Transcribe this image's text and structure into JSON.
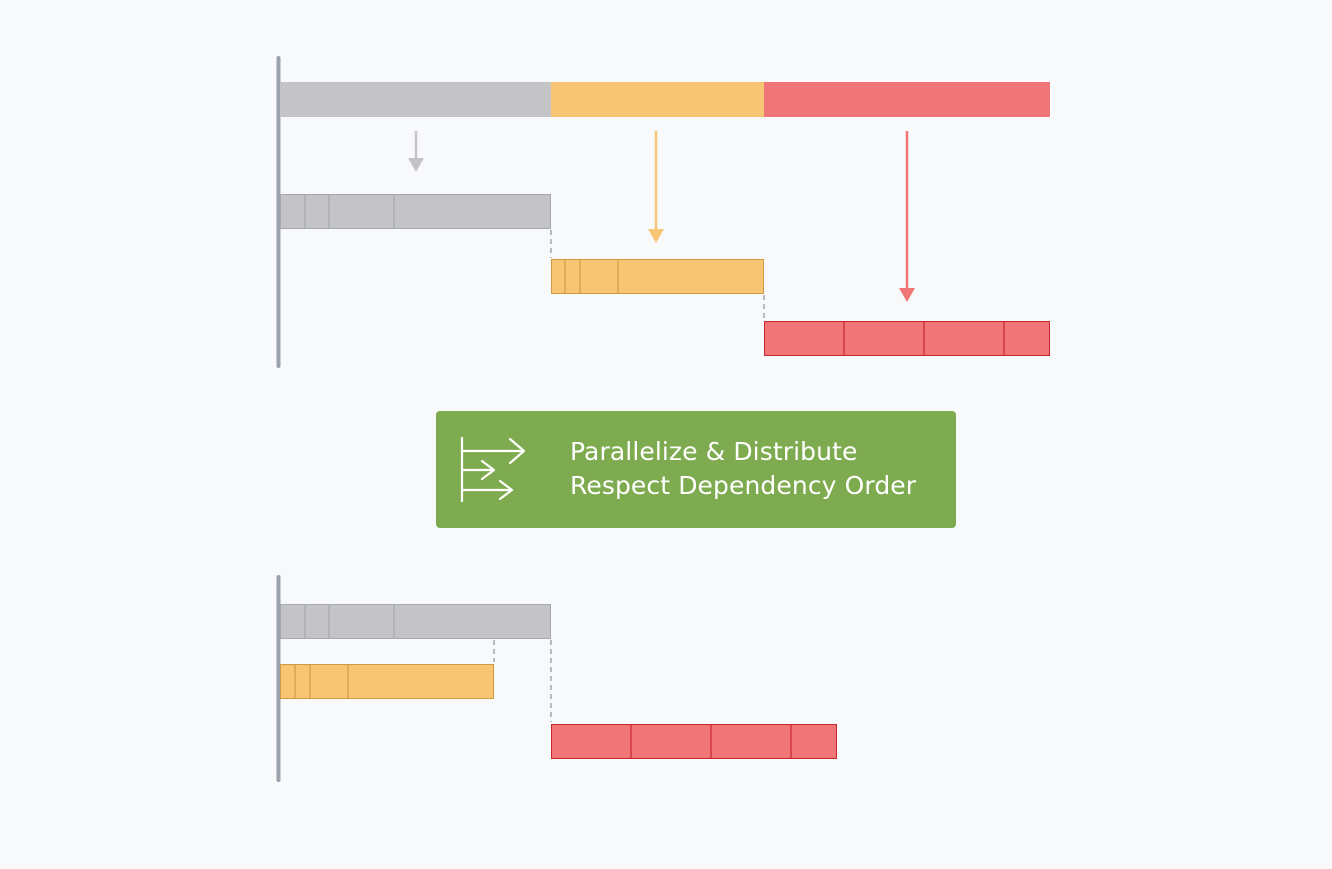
{
  "banner": {
    "line1": "Parallelize & Distribute",
    "line2": "Respect Dependency Order",
    "icon": "parallel-arrows-icon",
    "color": "#7eab4f"
  },
  "colors": {
    "gray_fill": "#c4c4c6",
    "gray_border": "#a3a8b3",
    "yellow_fill": "#f7c675",
    "yellow_border": "#d29a40",
    "red_fill": "#ef7577",
    "red_border": "#c7262d",
    "axis": "#9ba1ad",
    "dashed": "#8f949c"
  },
  "top_diagram": {
    "overview_segments": [
      "gray",
      "yellow",
      "red"
    ],
    "tasks": [
      {
        "color": "gray",
        "subtask_count": 4,
        "row": 1
      },
      {
        "color": "yellow",
        "subtask_count": 4,
        "row": 2
      },
      {
        "color": "red",
        "subtask_count": 4,
        "row": 3
      }
    ]
  },
  "bottom_diagram": {
    "tasks": [
      {
        "color": "gray",
        "subtask_count": 4,
        "row": 1
      },
      {
        "color": "yellow",
        "subtask_count": 4,
        "row": 2
      },
      {
        "color": "red",
        "subtask_count": 4,
        "row": 3
      }
    ]
  }
}
